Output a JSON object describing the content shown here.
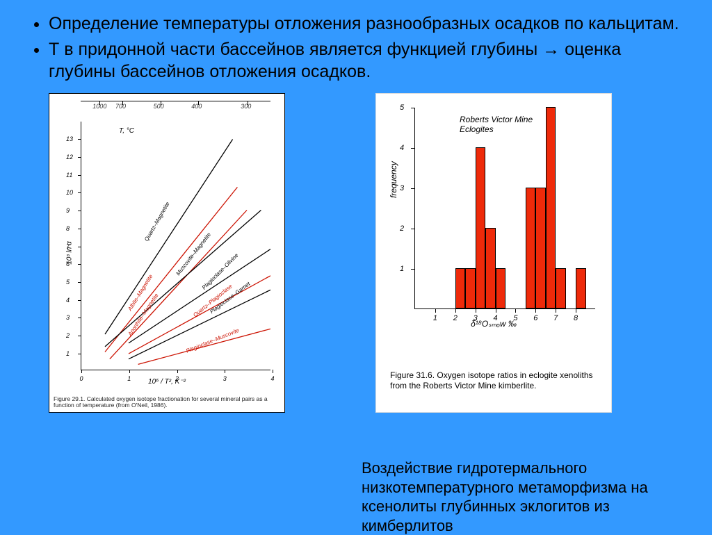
{
  "bullets": [
    "Определение температуры отложения разнообразных осадков по кальцитам.",
    "Т в придонной части бассейнов является функцией глубины → оценка глубины бассейнов отложения осадков."
  ],
  "bottom_caption": "Воздействие гидротермального низкотемпературного метаморфизма на ксенолиты глубинных эклогитов из кимберлитов",
  "left_chart": {
    "type": "line",
    "top_axis_label": "T, °C",
    "top_ticks": [
      {
        "pos": 0.1,
        "label": "1000"
      },
      {
        "pos": 0.22,
        "label": "700"
      },
      {
        "pos": 0.42,
        "label": "500"
      },
      {
        "pos": 0.62,
        "label": "400"
      },
      {
        "pos": 0.88,
        "label": "300"
      }
    ],
    "y_label": "10³ ln α",
    "x_label": "10⁶ / T², K⁻²",
    "xlim": [
      0,
      4
    ],
    "ylim": [
      0,
      14
    ],
    "xticks": [
      0,
      1,
      2,
      3,
      4
    ],
    "yticks": [
      1,
      2,
      3,
      4,
      5,
      6,
      7,
      8,
      9,
      10,
      11,
      12,
      13
    ],
    "line_width": 1.3,
    "lines": [
      {
        "label": "Quartz–Magnetite",
        "color": "#000",
        "p1": [
          0.5,
          2.0
        ],
        "p2": [
          3.2,
          13.0
        ],
        "lab_at": [
          1.35,
          7.5
        ],
        "angle": -60
      },
      {
        "label": "Albite–Magnetite",
        "color": "#cc1100",
        "p1": [
          0.5,
          1.0
        ],
        "p2": [
          3.3,
          10.3
        ],
        "lab_at": [
          1.0,
          3.6
        ],
        "angle": -58
      },
      {
        "label": "Anorthite–Magnetite",
        "color": "#cc1100",
        "p1": [
          0.6,
          0.6
        ],
        "p2": [
          3.5,
          9.0
        ],
        "lab_at": [
          1.0,
          2.2
        ],
        "angle": -56
      },
      {
        "label": "Muscovite–Magnetite",
        "color": "#000",
        "p1": [
          0.5,
          1.3
        ],
        "p2": [
          3.8,
          9.0
        ],
        "lab_at": [
          2.0,
          5.6
        ],
        "angle": -52
      },
      {
        "label": "Plagioclase–Olivine",
        "color": "#000",
        "p1": [
          1.0,
          1.5
        ],
        "p2": [
          4.0,
          6.8
        ],
        "lab_at": [
          2.55,
          4.8
        ],
        "angle": -45
      },
      {
        "label": "Quartz–Plagioclase",
        "color": "#cc1100",
        "p1": [
          1.0,
          0.9
        ],
        "p2": [
          4.0,
          5.3
        ],
        "lab_at": [
          2.35,
          3.3
        ],
        "angle": -39
      },
      {
        "label": "Plagioclase–Garnet",
        "color": "#000",
        "p1": [
          1.0,
          0.6
        ],
        "p2": [
          4.0,
          4.5
        ],
        "lab_at": [
          2.7,
          3.5
        ],
        "angle": -37
      },
      {
        "label": "Plagioclase–Muscovite",
        "color": "#cc1100",
        "p1": [
          1.2,
          0.3
        ],
        "p2": [
          4.0,
          2.3
        ],
        "lab_at": [
          2.2,
          1.3
        ],
        "angle": -22
      }
    ],
    "caption": "Figure 29.1. Calculated oxygen isotope fractionation for several mineral pairs as a function of temperature (from O'Neil, 1986)."
  },
  "right_chart": {
    "type": "histogram",
    "title_lines": [
      "Roberts Victor Mine",
      "Eclogites"
    ],
    "y_label": "frequency",
    "x_label": "δ¹⁸Oₛₘₒw ‰",
    "xlim": [
      0,
      9
    ],
    "ylim": [
      0,
      5
    ],
    "yticks": [
      1,
      2,
      3,
      4,
      5
    ],
    "xticks": [
      1,
      2,
      3,
      4,
      5,
      6,
      7,
      8
    ],
    "bars": [
      {
        "x": 2.0,
        "h": 1
      },
      {
        "x": 2.5,
        "h": 1
      },
      {
        "x": 3.0,
        "h": 4
      },
      {
        "x": 3.5,
        "h": 2
      },
      {
        "x": 4.0,
        "h": 1
      },
      {
        "x": 5.5,
        "h": 3
      },
      {
        "x": 6.0,
        "h": 3
      },
      {
        "x": 6.5,
        "h": 5
      },
      {
        "x": 7.0,
        "h": 1
      },
      {
        "x": 8.0,
        "h": 1
      }
    ],
    "bar_width_units": 0.5,
    "bar_color": "#ee2a0a",
    "border_color": "#000",
    "caption": "Figure 31.6. Oxygen isotope ratios in eclogite xenoliths from the Roberts Victor Mine kimberlite."
  }
}
